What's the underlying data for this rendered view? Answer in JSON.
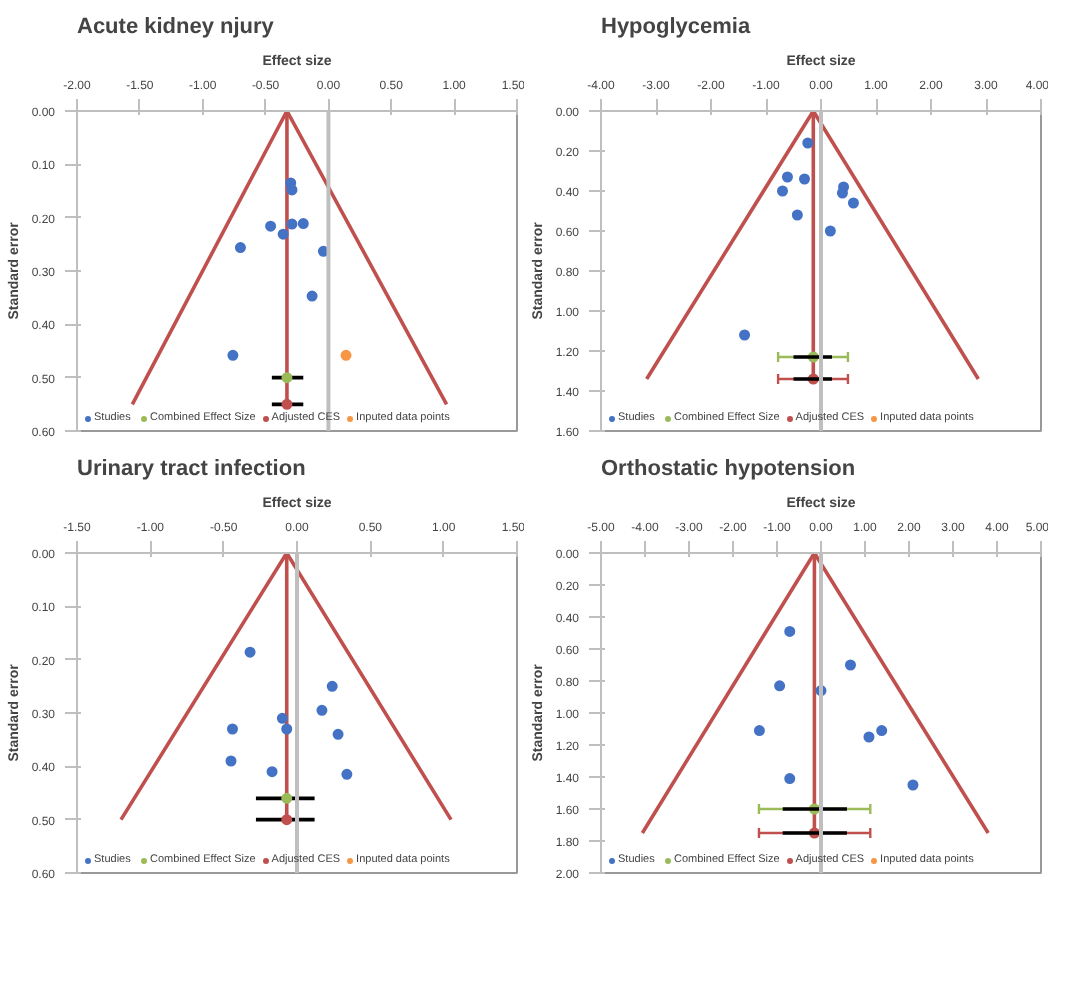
{
  "chart_data": [
    {
      "type": "scatter",
      "title": "Acute kidney njury",
      "xlabel": "Effect size",
      "ylabel": "Standard error",
      "xlim": [
        -2,
        1.5
      ],
      "xticks": [
        {
          "value": -2,
          "label": "-2.00"
        },
        {
          "value": -1.5,
          "label": "-1.50"
        },
        {
          "value": -1,
          "label": "-1.00"
        },
        {
          "value": -0.5,
          "label": "-0.50"
        },
        {
          "value": 0,
          "label": "0.00"
        },
        {
          "value": 0.5,
          "label": "0.50"
        },
        {
          "value": 1,
          "label": "1.00"
        },
        {
          "value": 1.5,
          "label": "1.50"
        }
      ],
      "ylim": [
        0.6,
        0
      ],
      "yticks": [
        {
          "value": 0,
          "label": "0.00"
        },
        {
          "value": 0.1,
          "label": "0.10"
        },
        {
          "value": 0.2,
          "label": "0.20"
        },
        {
          "value": 0.3,
          "label": "0.30"
        },
        {
          "value": 0.4,
          "label": "0.40"
        },
        {
          "value": 0.5,
          "label": "0.50"
        },
        {
          "value": 0.6,
          "label": "0.60"
        }
      ],
      "legend": "bottom",
      "marker": "circle",
      "ref_lines": [
        {
          "axis": "x",
          "value": 0,
          "color": "#bfbfbf"
        }
      ],
      "series": [
        {
          "type": "line",
          "marker": "none",
          "color": "#c0504d",
          "x": [
            -1.56,
            -0.33,
            0.94
          ],
          "values": [
            0.55,
            0,
            0.55
          ]
        },
        {
          "type": "line",
          "marker": "none",
          "color": "#c0504d",
          "x": [
            -0.33,
            -0.33
          ],
          "values": [
            0,
            0.55
          ]
        },
        {
          "type": "line",
          "marker": "none",
          "color": "#000000",
          "x": [
            -0.45,
            -0.2
          ],
          "values": [
            0.5,
            0.5
          ]
        },
        {
          "type": "line",
          "marker": "none",
          "color": "#000000",
          "x": [
            -0.45,
            -0.2
          ],
          "values": [
            0.55,
            0.55
          ]
        },
        {
          "name": "Studies",
          "color": "#4472c4",
          "x": [
            -0.3,
            -0.29,
            -0.46,
            -0.29,
            -0.2,
            -0.36,
            -0.7,
            -0.04,
            -0.13,
            -0.76
          ],
          "values": [
            0.135,
            0.148,
            0.216,
            0.212,
            0.211,
            0.231,
            0.256,
            0.263,
            0.347,
            0.458
          ]
        },
        {
          "name": "Combined Effect Size",
          "color": "#9bbb59",
          "x": [
            -0.33
          ],
          "values": [
            0.5
          ]
        },
        {
          "name": "Adjusted CES",
          "color": "#c0504d",
          "x": [
            -0.33
          ],
          "values": [
            0.55
          ]
        },
        {
          "name": "Inputed data points",
          "color": "#f79646",
          "x": [
            0.14
          ],
          "values": [
            0.458
          ]
        }
      ]
    },
    {
      "type": "scatter",
      "title": "Hypoglycemia",
      "xlabel": "Effect size",
      "ylabel": "Standard error",
      "xlim": [
        -4,
        4
      ],
      "xticks": [
        {
          "value": -4,
          "label": "-4.00"
        },
        {
          "value": -3,
          "label": "-3.00"
        },
        {
          "value": -2,
          "label": "-2.00"
        },
        {
          "value": -1,
          "label": "-1.00"
        },
        {
          "value": 0,
          "label": "0.00"
        },
        {
          "value": 1,
          "label": "1.00"
        },
        {
          "value": 2,
          "label": "2.00"
        },
        {
          "value": 3,
          "label": "3.00"
        },
        {
          "value": 4,
          "label": "4.00"
        }
      ],
      "ylim": [
        1.6,
        0
      ],
      "yticks": [
        {
          "value": 0,
          "label": "0.00"
        },
        {
          "value": 0.2,
          "label": "0.20"
        },
        {
          "value": 0.4,
          "label": "0.40"
        },
        {
          "value": 0.6,
          "label": "0.60"
        },
        {
          "value": 0.8,
          "label": "0.80"
        },
        {
          "value": 1,
          "label": "1.00"
        },
        {
          "value": 1.2,
          "label": "1.20"
        },
        {
          "value": 1.4,
          "label": "1.40"
        },
        {
          "value": 1.6,
          "label": "1.60"
        }
      ],
      "legend": "bottom",
      "marker": "circle",
      "ref_lines": [
        {
          "axis": "x",
          "value": 0,
          "color": "#bfbfbf"
        }
      ],
      "series": [
        {
          "type": "line",
          "marker": "none",
          "color": "#c0504d",
          "x": [
            -3.17,
            -0.14,
            2.86
          ],
          "values": [
            1.34,
            0,
            1.34
          ]
        },
        {
          "type": "line",
          "marker": "none",
          "color": "#c0504d",
          "x": [
            -0.14,
            -0.14
          ],
          "values": [
            0,
            1.34
          ]
        },
        {
          "name": "Studies",
          "color": "#4472c4",
          "x": [
            -0.24,
            -0.61,
            -0.3,
            -0.7,
            0.41,
            0.39,
            0.59,
            -0.43,
            0.17,
            -1.39
          ],
          "values": [
            0.16,
            0.33,
            0.34,
            0.4,
            0.38,
            0.41,
            0.46,
            0.52,
            0.6,
            1.12
          ]
        },
        {
          "name": "Combined Effect Size",
          "color": "#9bbb59",
          "x": [
            -0.14
          ],
          "values": [
            1.23
          ],
          "xerrors": [
            [
              -0.78,
              0.49
            ]
          ]
        },
        {
          "name": "Adjusted CES",
          "color": "#c0504d",
          "x": [
            -0.14
          ],
          "values": [
            1.34
          ],
          "xerrors": [
            [
              -0.78,
              0.49
            ]
          ]
        },
        {
          "type": "line",
          "marker": "none",
          "color": "#000000",
          "x": [
            -0.5,
            0.2
          ],
          "values": [
            1.23,
            1.23
          ]
        },
        {
          "type": "line",
          "marker": "none",
          "color": "#000000",
          "x": [
            -0.5,
            0.2
          ],
          "values": [
            1.34,
            1.34
          ]
        },
        {
          "name": "Inputed data points",
          "color": "#f79646"
        }
      ]
    },
    {
      "type": "scatter",
      "title": "Urinary tract infection",
      "xlabel": "Effect size",
      "ylabel": "Standard error",
      "xlim": [
        -1.5,
        1.5
      ],
      "xticks": [
        {
          "value": -1.5,
          "label": "-1.50"
        },
        {
          "value": -1,
          "label": "-1.00"
        },
        {
          "value": -0.5,
          "label": "-0.50"
        },
        {
          "value": 0,
          "label": "0.00"
        },
        {
          "value": 0.5,
          "label": "0.50"
        },
        {
          "value": 1,
          "label": "1.00"
        },
        {
          "value": 1.5,
          "label": "1.50"
        }
      ],
      "ylim": [
        0.6,
        0
      ],
      "yticks": [
        {
          "value": 0,
          "label": "0.00"
        },
        {
          "value": 0.1,
          "label": "0.10"
        },
        {
          "value": 0.2,
          "label": "0.20"
        },
        {
          "value": 0.3,
          "label": "0.30"
        },
        {
          "value": 0.4,
          "label": "0.40"
        },
        {
          "value": 0.5,
          "label": "0.50"
        },
        {
          "value": 0.6,
          "label": "0.60"
        }
      ],
      "legend": "bottom",
      "marker": "circle",
      "ref_lines": [
        {
          "axis": "x",
          "value": 0,
          "color": "#bfbfbf"
        }
      ],
      "series": [
        {
          "type": "line",
          "marker": "none",
          "color": "#c0504d",
          "x": [
            -1.2,
            -0.07,
            1.05
          ],
          "values": [
            0.5,
            0,
            0.5
          ]
        },
        {
          "type": "line",
          "marker": "none",
          "color": "#c0504d",
          "x": [
            -0.07,
            -0.07
          ],
          "values": [
            0,
            0.5
          ]
        },
        {
          "type": "line",
          "marker": "none",
          "color": "#000000",
          "x": [
            -0.28,
            0.12
          ],
          "values": [
            0.46,
            0.46
          ]
        },
        {
          "type": "line",
          "marker": "none",
          "color": "#000000",
          "x": [
            -0.28,
            0.12
          ],
          "values": [
            0.5,
            0.5
          ]
        },
        {
          "name": "Studies",
          "color": "#4472c4",
          "x": [
            -0.32,
            0.24,
            0.17,
            -0.1,
            -0.07,
            -0.44,
            0.28,
            -0.45,
            -0.17,
            0.34
          ],
          "values": [
            0.186,
            0.25,
            0.295,
            0.31,
            0.33,
            0.33,
            0.34,
            0.39,
            0.41,
            0.415
          ]
        },
        {
          "name": "Combined Effect Size",
          "color": "#9bbb59",
          "x": [
            -0.07
          ],
          "values": [
            0.46
          ]
        },
        {
          "name": "Adjusted CES",
          "color": "#c0504d",
          "x": [
            -0.07
          ],
          "values": [
            0.5
          ]
        },
        {
          "name": "Inputed data points",
          "color": "#f79646"
        }
      ]
    },
    {
      "type": "scatter",
      "title": "Orthostatic hypotension",
      "xlabel": "Effect size",
      "ylabel": "Standard error",
      "xlim": [
        -5,
        5
      ],
      "xticks": [
        {
          "value": -5,
          "label": "-5.00"
        },
        {
          "value": -4,
          "label": "-4.00"
        },
        {
          "value": -3,
          "label": "-3.00"
        },
        {
          "value": -2,
          "label": "-2.00"
        },
        {
          "value": -1,
          "label": "-1.00"
        },
        {
          "value": 0,
          "label": "0.00"
        },
        {
          "value": 1,
          "label": "1.00"
        },
        {
          "value": 2,
          "label": "2.00"
        },
        {
          "value": 3,
          "label": "3.00"
        },
        {
          "value": 4,
          "label": "4.00"
        },
        {
          "value": 5,
          "label": "5.00"
        }
      ],
      "ylim": [
        2,
        0
      ],
      "yticks": [
        {
          "value": 0,
          "label": "0.00"
        },
        {
          "value": 0.2,
          "label": "0.20"
        },
        {
          "value": 0.4,
          "label": "0.40"
        },
        {
          "value": 0.6,
          "label": "0.60"
        },
        {
          "value": 0.8,
          "label": "0.80"
        },
        {
          "value": 1,
          "label": "1.00"
        },
        {
          "value": 1.2,
          "label": "1.20"
        },
        {
          "value": 1.4,
          "label": "1.40"
        },
        {
          "value": 1.6,
          "label": "1.60"
        },
        {
          "value": 1.8,
          "label": "1.80"
        },
        {
          "value": 2,
          "label": "2.00"
        }
      ],
      "legend": "bottom",
      "marker": "circle",
      "ref_lines": [
        {
          "axis": "x",
          "value": 0,
          "color": "#bfbfbf"
        }
      ],
      "series": [
        {
          "type": "line",
          "marker": "none",
          "color": "#c0504d",
          "x": [
            -4.06,
            -0.15,
            3.8
          ],
          "values": [
            1.75,
            0,
            1.75
          ]
        },
        {
          "type": "line",
          "marker": "none",
          "color": "#c0504d",
          "x": [
            -0.15,
            -0.15
          ],
          "values": [
            0,
            1.75
          ]
        },
        {
          "name": "Studies",
          "color": "#4472c4",
          "x": [
            -0.71,
            0.67,
            -0.94,
            0,
            -1.4,
            1.38,
            1.09,
            -0.71,
            2.09
          ],
          "values": [
            0.49,
            0.7,
            0.83,
            0.86,
            1.11,
            1.11,
            1.15,
            1.41,
            1.45
          ]
        },
        {
          "name": "Combined Effect Size",
          "color": "#9bbb59",
          "x": [
            -0.15
          ],
          "values": [
            1.6
          ],
          "xerrors": [
            [
              -1.41,
              1.12
            ]
          ]
        },
        {
          "name": "Adjusted CES",
          "color": "#c0504d",
          "x": [
            -0.15
          ],
          "values": [
            1.75
          ],
          "xerrors": [
            [
              -1.41,
              1.12
            ]
          ]
        },
        {
          "type": "line",
          "marker": "none",
          "color": "#000000",
          "x": [
            -0.87,
            0.59
          ],
          "values": [
            1.6,
            1.6
          ]
        },
        {
          "type": "line",
          "marker": "none",
          "color": "#000000",
          "x": [
            -0.87,
            0.59
          ],
          "values": [
            1.75,
            1.75
          ]
        },
        {
          "name": "Inputed data points",
          "color": "#f79646"
        }
      ]
    }
  ]
}
